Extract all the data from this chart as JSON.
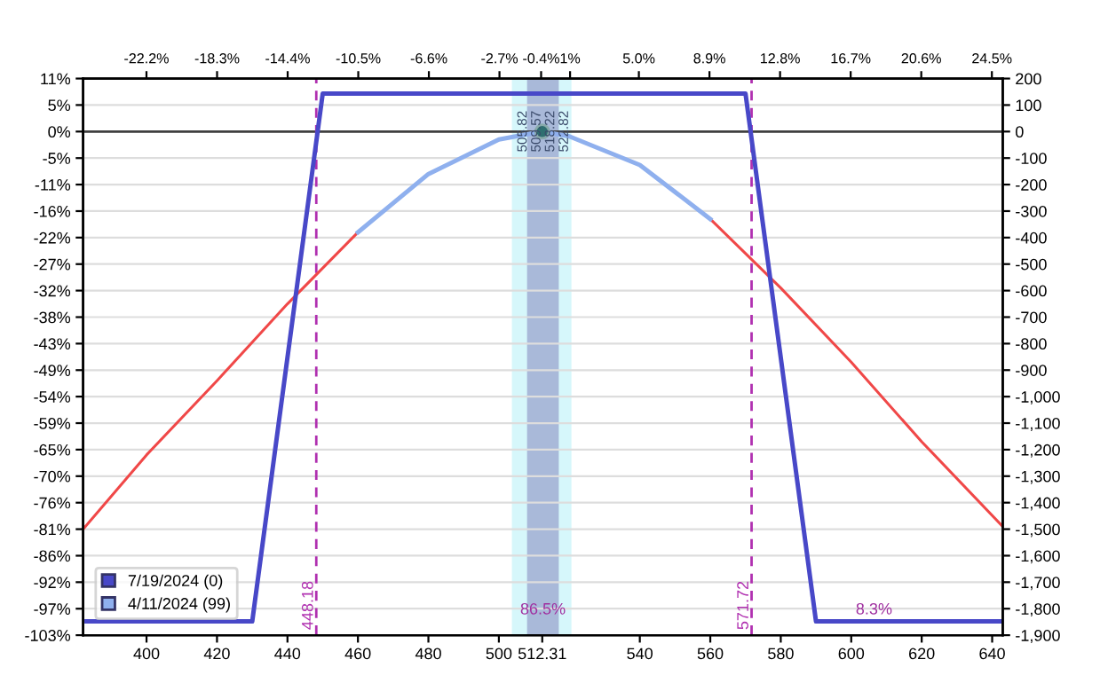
{
  "chart_data": {
    "type": "line",
    "xlim": [
      382,
      643
    ],
    "xticks": [
      400,
      420,
      440,
      460,
      480,
      500,
      {
        "value": 512.31,
        "label": "512.31"
      },
      540,
      560,
      580,
      600,
      620,
      640
    ],
    "x2lim": [
      -25.7,
      25.1
    ],
    "x2ticks": [
      {
        "value": -22.2,
        "label": "-22.2%"
      },
      {
        "value": -18.3,
        "label": "-18.3%"
      },
      {
        "value": -14.4,
        "label": "-14.4%"
      },
      {
        "value": -10.5,
        "label": "-10.5%"
      },
      {
        "value": -6.6,
        "label": "-6.6%"
      },
      {
        "value": -2.7,
        "label": "-2.7%"
      },
      {
        "value": -0.4,
        "label": "-0.4%"
      },
      {
        "value": 1.2,
        "label": "1%"
      },
      {
        "value": 5,
        "label": "5.0%"
      },
      {
        "value": 8.9,
        "label": "8.9%"
      },
      {
        "value": 12.8,
        "label": "12.8%"
      },
      {
        "value": 16.7,
        "label": "16.7%"
      },
      {
        "value": 20.6,
        "label": "20.6%"
      },
      {
        "value": 24.5,
        "label": "24.5%"
      }
    ],
    "ylim": [
      -102.7,
      10.81
    ],
    "yticks": [
      {
        "value": 10.81,
        "label": "11%"
      },
      {
        "value": 5.41,
        "label": "5%"
      },
      {
        "value": 0,
        "label": "0%"
      },
      {
        "value": -5.41,
        "label": "-5%"
      },
      {
        "value": -10.81,
        "label": "-11%"
      },
      {
        "value": -16.22,
        "label": "-16%"
      },
      {
        "value": -21.62,
        "label": "-22%"
      },
      {
        "value": -27.03,
        "label": "-27%"
      },
      {
        "value": -32.43,
        "label": "-32%"
      },
      {
        "value": -37.84,
        "label": "-38%"
      },
      {
        "value": -43.24,
        "label": "-43%"
      },
      {
        "value": -48.65,
        "label": "-49%"
      },
      {
        "value": -54.05,
        "label": "-54%"
      },
      {
        "value": -59.46,
        "label": "-59%"
      },
      {
        "value": -64.86,
        "label": "-65%"
      },
      {
        "value": -70.27,
        "label": "-70%"
      },
      {
        "value": -75.68,
        "label": "-76%"
      },
      {
        "value": -81.08,
        "label": "-81%"
      },
      {
        "value": -86.49,
        "label": "-86%"
      },
      {
        "value": -91.89,
        "label": "-92%"
      },
      {
        "value": -97.3,
        "label": "-97%"
      },
      {
        "value": -102.7,
        "label": "-103%"
      }
    ],
    "y2lim": [
      -1900,
      200
    ],
    "y2ticks": [
      200,
      100,
      0,
      -100,
      -200,
      -300,
      -400,
      -500,
      -600,
      -700,
      -800,
      -900,
      {
        "value": -1000,
        "label": "-1,000"
      },
      {
        "value": -1100,
        "label": "-1,100"
      },
      {
        "value": -1200,
        "label": "-1,200"
      },
      {
        "value": -1300,
        "label": "-1,300"
      },
      {
        "value": -1400,
        "label": "-1,400"
      },
      {
        "value": -1500,
        "label": "-1,500"
      },
      {
        "value": -1600,
        "label": "-1,600"
      },
      {
        "value": -1700,
        "label": "-1,700"
      },
      {
        "value": -1800,
        "label": "-1,800"
      },
      {
        "value": -1900,
        "label": "-1,900"
      }
    ],
    "grid": true,
    "legend": "bottom left",
    "bands": [
      {
        "axis": "x",
        "from": 503.7,
        "to": 520.6,
        "color": "#d6f7fb"
      },
      {
        "axis": "x",
        "from": 508,
        "to": 517,
        "color": "#a9b9d9"
      }
    ],
    "ref_lines": [
      {
        "axis": "y2",
        "value": 0,
        "color": "#404040",
        "line_style": "solid"
      },
      {
        "axis": "x",
        "value": 448.18,
        "label": "448.18",
        "color": "#b030b0",
        "line_style": "dashed"
      },
      {
        "axis": "x",
        "value": 571.72,
        "label": "571.72",
        "color": "#b030b0",
        "line_style": "dashed"
      }
    ],
    "series": [
      {
        "axis": "y2",
        "color": "#f04848",
        "x": [
          382,
          400,
          420,
          440,
          460,
          480,
          500,
          512.31,
          520,
          540,
          560,
          580,
          600,
          620,
          643
        ],
        "values": [
          -1500,
          -1220,
          -940,
          -650,
          -380,
          null,
          null,
          null,
          null,
          null,
          -330,
          -590,
          -870,
          -1170,
          -1490
        ]
      },
      {
        "axis": "y2",
        "name": "4/11/2024 (99)",
        "color": "#8fb0ee",
        "x": [
          460,
          480,
          500,
          512.31,
          520,
          540,
          560
        ],
        "values": [
          -380,
          -160,
          -30,
          0,
          -18,
          -126,
          -330
        ]
      },
      {
        "axis": "y2",
        "name": "7/19/2024 (0)",
        "color": "#4848c8",
        "x": [
          383,
          430,
          450,
          570,
          590,
          643
        ],
        "values": [
          -1848,
          -1848,
          143,
          143,
          -1848,
          -1848
        ]
      },
      {
        "type": "scatter",
        "axis": "y2",
        "marker": "circle",
        "color": "#2f6f70",
        "x": [
          512.31
        ],
        "values": [
          0
        ]
      }
    ],
    "annotations": [
      "86.5%",
      "8.3%",
      "505.82",
      "509.57",
      "518.22",
      "522.82"
    ]
  }
}
